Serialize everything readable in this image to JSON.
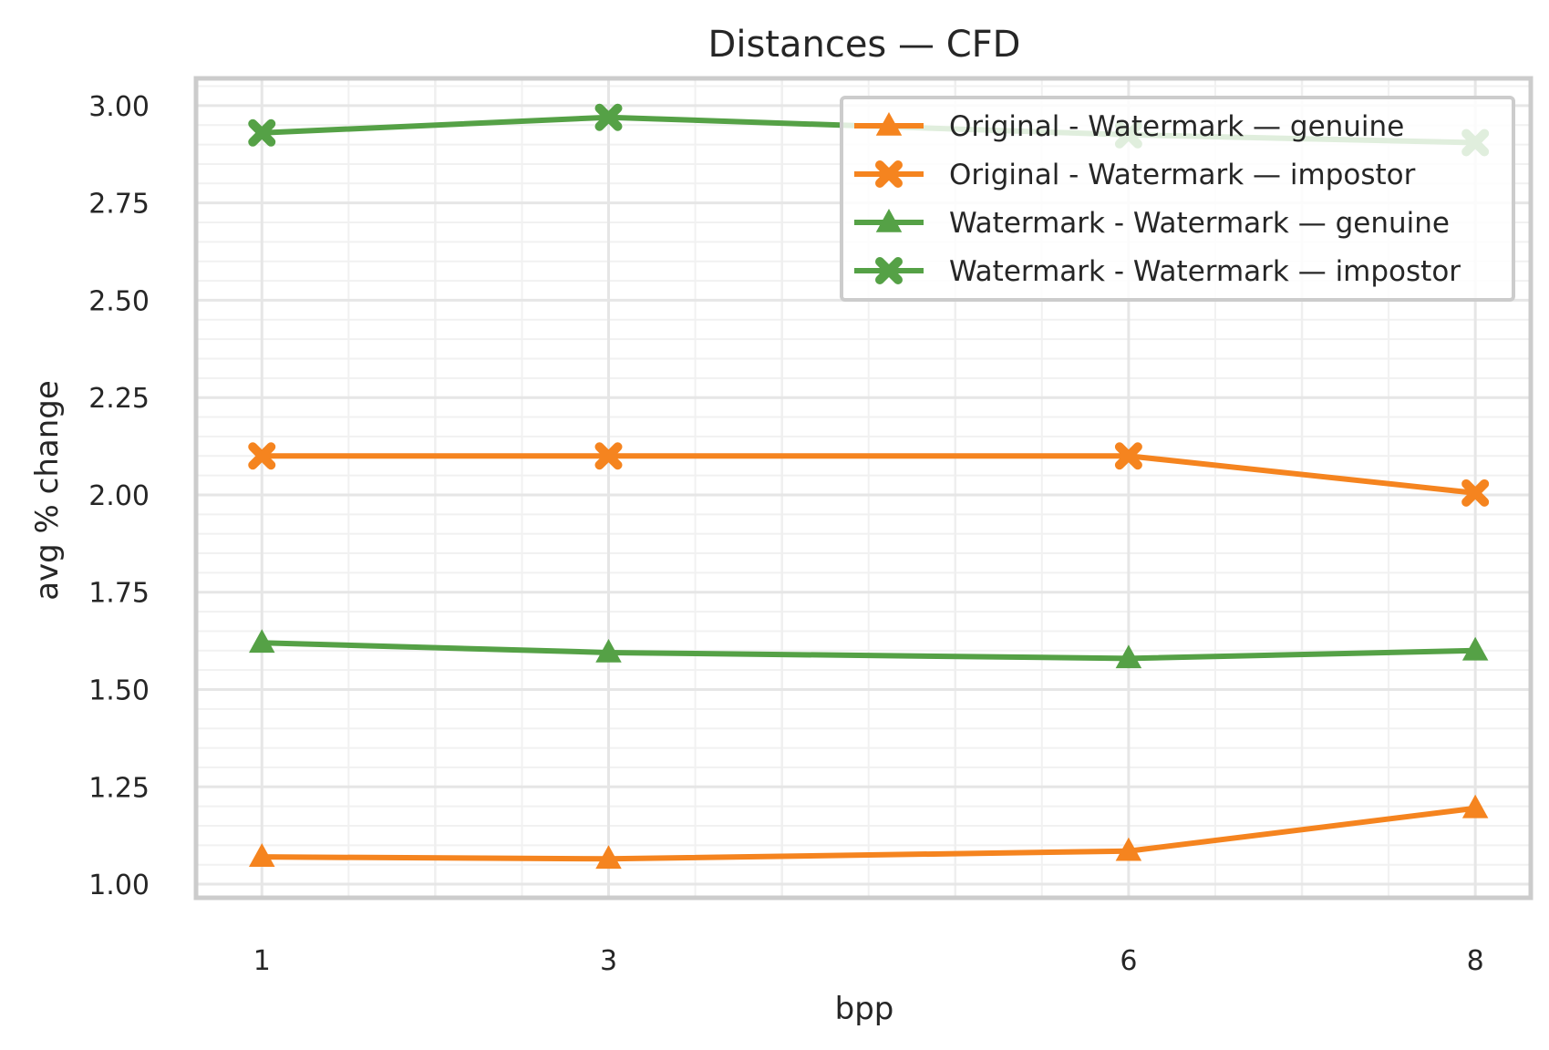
{
  "chart_data": {
    "type": "line",
    "title": "Distances — CFD",
    "xlabel": "bpp",
    "ylabel": "avg % change",
    "x": [
      1,
      3,
      6,
      8
    ],
    "xlim": [
      0.62,
      8.32
    ],
    "ylim": [
      0.965,
      3.07
    ],
    "yticks": [
      1.0,
      1.25,
      1.5,
      1.75,
      2.0,
      2.25,
      2.5,
      2.75,
      3.0
    ],
    "ytick_labels": [
      "1.00",
      "1.25",
      "1.50",
      "1.75",
      "2.00",
      "2.25",
      "2.50",
      "2.75",
      "3.00"
    ],
    "xticks": [
      1,
      3,
      6,
      8
    ],
    "xtick_labels": [
      "1",
      "3",
      "6",
      "8"
    ],
    "grid": "major and minor",
    "legend_position": "top-right",
    "series": [
      {
        "name": "Original - Watermark — genuine",
        "color": "#f5841f",
        "marker": "triangle",
        "values": [
          1.07,
          1.065,
          1.085,
          1.195
        ]
      },
      {
        "name": "Original - Watermark — impostor",
        "color": "#f5841f",
        "marker": "x-filled",
        "values": [
          2.1,
          2.1,
          2.1,
          2.005
        ]
      },
      {
        "name": "Watermark - Watermark — genuine",
        "color": "#55a146",
        "marker": "triangle",
        "values": [
          1.62,
          1.595,
          1.58,
          1.6
        ]
      },
      {
        "name": "Watermark - Watermark — impostor",
        "color": "#55a146",
        "marker": "x-filled",
        "values": [
          2.93,
          2.97,
          2.925,
          2.905
        ]
      }
    ]
  }
}
